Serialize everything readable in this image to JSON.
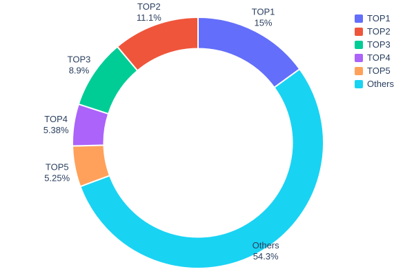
{
  "chart_data": {
    "type": "pie",
    "title": "",
    "hole_ratio": 0.75,
    "direction": "clockwise",
    "start_angle_deg": 0,
    "legend_position": "right",
    "slices_draw_order": [
      {
        "label": "TOP1",
        "value": 15.0,
        "percent_label": "15%",
        "color": "#636EFA"
      },
      {
        "label": "Others",
        "value": 54.3,
        "percent_label": "54.3%",
        "color": "#19D3F3"
      },
      {
        "label": "TOP5",
        "value": 5.25,
        "percent_label": "5.25%",
        "color": "#FFA15A"
      },
      {
        "label": "TOP4",
        "value": 5.38,
        "percent_label": "5.38%",
        "color": "#AB63FA"
      },
      {
        "label": "TOP3",
        "value": 8.9,
        "percent_label": "8.9%",
        "color": "#00CC96"
      },
      {
        "label": "TOP2",
        "value": 11.1,
        "percent_label": "11.1%",
        "color": "#EF553B"
      }
    ],
    "legend_order": [
      "TOP1",
      "TOP2",
      "TOP3",
      "TOP4",
      "TOP5",
      "Others"
    ]
  },
  "colors": {
    "label_text": "#2a3f5f",
    "background": "#ffffff",
    "slice_separator": "#ffffff"
  }
}
